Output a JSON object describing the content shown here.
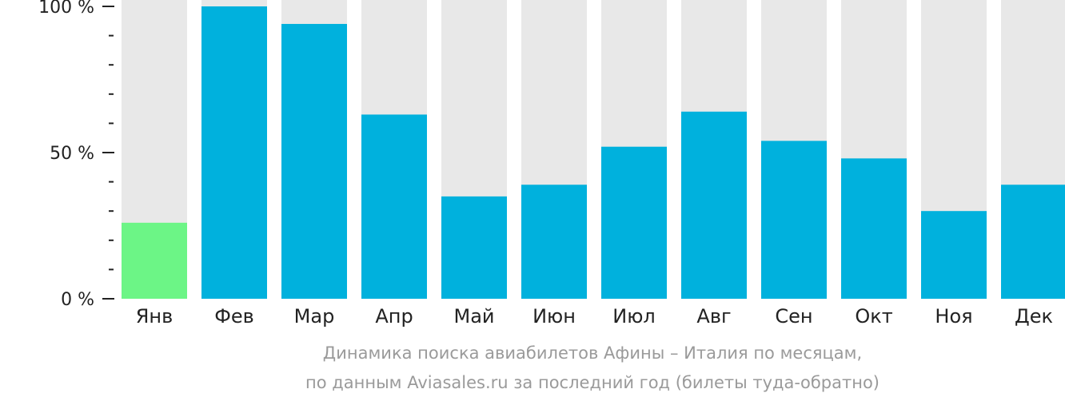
{
  "chart_data": {
    "type": "bar",
    "categories": [
      "Янв",
      "Фев",
      "Мар",
      "Апр",
      "Май",
      "Июн",
      "Июл",
      "Авг",
      "Сен",
      "Окт",
      "Ноя",
      "Дек"
    ],
    "values": [
      26,
      100,
      94,
      63,
      35,
      39,
      52,
      64,
      54,
      48,
      30,
      39
    ],
    "ylim": [
      0,
      100
    ],
    "ytick_labels": [
      {
        "value": 0,
        "label": "0 %"
      },
      {
        "value": 50,
        "label": "50 %"
      },
      {
        "value": 100,
        "label": "100 %"
      }
    ],
    "minor_tick_step": 10,
    "highlight_index": 0,
    "colors": {
      "bar": "#00b1dd",
      "highlight": "#6cf586",
      "background_bar": "#e8e8e8",
      "axis": "#222222"
    },
    "grid": false,
    "legend": "none"
  },
  "caption": {
    "line1": "Динамика поиска авиабилетов Афины – Италия по месяцам,",
    "line2": "по данным Aviasales.ru за последний год (билеты туда-обратно)"
  }
}
